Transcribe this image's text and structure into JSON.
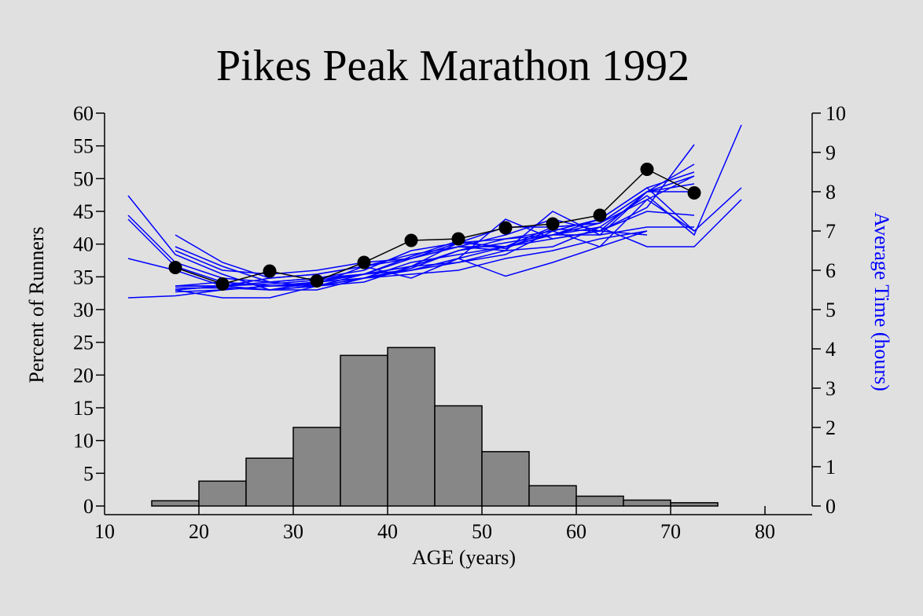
{
  "chart_data": {
    "type": "bar",
    "title": "Pikes Peak Marathon 1992",
    "xlabel": "AGE (years)",
    "ylabel": "Percent of Runners",
    "y2label": "Average Time (hours)",
    "xlim": [
      10,
      85
    ],
    "ylim": [
      0,
      60
    ],
    "y2lim": [
      0,
      10
    ],
    "xticks": [
      "10",
      "20",
      "30",
      "40",
      "50",
      "60",
      "70",
      "80"
    ],
    "yticks": [
      "0",
      "5",
      "10",
      "15",
      "20",
      "25",
      "30",
      "35",
      "40",
      "45",
      "50",
      "55",
      "60"
    ],
    "y2ticks": [
      "0",
      "1",
      "2",
      "3",
      "4",
      "5",
      "6",
      "7",
      "8",
      "9",
      "10"
    ],
    "grid": false,
    "histogram": {
      "bin_edges": [
        15,
        20,
        25,
        30,
        35,
        40,
        45,
        50,
        55,
        60,
        65,
        70,
        75
      ],
      "values": [
        0.8,
        3.8,
        7.3,
        12.0,
        23.0,
        24.2,
        15.3,
        8.3,
        3.1,
        1.5,
        0.9,
        0.5
      ],
      "color": "#878787"
    },
    "average_1992": {
      "axis": "right",
      "color": "#000000",
      "x": [
        17.5,
        22.5,
        27.5,
        32.5,
        37.5,
        42.5,
        47.5,
        52.5,
        57.5,
        62.5,
        67.5,
        72.5
      ],
      "y": [
        6.07,
        5.65,
        5.98,
        5.73,
        6.2,
        6.76,
        6.8,
        7.08,
        7.18,
        7.4,
        8.57,
        7.97
      ]
    },
    "other_years": {
      "axis": "right",
      "color": "#0000ff",
      "x": [
        12.5,
        17.5,
        22.5,
        27.5,
        32.5,
        37.5,
        42.5,
        47.5,
        52.5,
        57.5,
        62.5,
        67.5,
        72.5,
        77.5
      ],
      "series": [
        {
          "y": [
            7.9,
            6.4,
            5.9,
            5.5,
            5.6,
            5.8,
            6.2,
            6.4,
            6.6,
            6.9,
            7.2,
            7.8,
            8.4,
            null
          ]
        },
        {
          "y": [
            7.3,
            6.1,
            5.7,
            5.6,
            5.7,
            5.9,
            6.0,
            6.3,
            6.6,
            6.8,
            7.0,
            7.6,
            9.2,
            null
          ]
        },
        {
          "y": [
            7.4,
            6.2,
            5.8,
            5.7,
            5.6,
            5.7,
            6.1,
            6.2,
            6.4,
            7.0,
            7.3,
            8.1,
            7.0,
            8.1
          ]
        },
        {
          "y": [
            6.3,
            6.0,
            5.6,
            5.5,
            5.7,
            5.8,
            6.0,
            6.2,
            6.5,
            6.6,
            7.1,
            7.9,
            6.9,
            9.7
          ]
        },
        {
          "y": [
            5.3,
            5.35,
            5.5,
            5.6,
            5.6,
            5.9,
            6.1,
            6.5,
            6.8,
            6.9,
            7.1,
            6.6,
            6.6,
            7.8
          ]
        },
        {
          "y": [
            null,
            5.5,
            5.6,
            5.7,
            5.8,
            5.9,
            6.3,
            6.6,
            6.6,
            6.9,
            7.3,
            8.1,
            8.5,
            null
          ]
        },
        {
          "y": [
            null,
            5.6,
            5.6,
            5.5,
            5.5,
            5.8,
            6.0,
            6.3,
            7.3,
            6.8,
            7.0,
            8.0,
            8.2,
            null
          ]
        },
        {
          "y": [
            null,
            5.5,
            5.6,
            5.8,
            5.9,
            6.1,
            6.3,
            6.6,
            6.5,
            7.5,
            6.9,
            8.0,
            8.4,
            null
          ]
        },
        {
          "y": [
            null,
            5.6,
            5.7,
            5.6,
            5.7,
            5.9,
            6.1,
            6.7,
            6.6,
            7.1,
            7.2,
            8.0,
            8.0,
            null
          ]
        },
        {
          "y": [
            null,
            6.6,
            6.1,
            5.7,
            5.8,
            6.0,
            6.5,
            6.7,
            7.1,
            7.1,
            7.2,
            8.0,
            8.7,
            null
          ]
        },
        {
          "y": [
            null,
            6.9,
            6.2,
            5.8,
            5.9,
            6.1,
            6.4,
            6.6,
            6.9,
            7.3,
            7.0,
            6.9,
            null,
            null
          ]
        },
        {
          "y": [
            null,
            6.5,
            6.0,
            5.9,
            6.0,
            6.2,
            6.3,
            6.7,
            6.8,
            7.0,
            6.6,
            7.0,
            null,
            null
          ]
        },
        {
          "y": [
            null,
            5.5,
            5.3,
            5.3,
            5.6,
            5.8,
            5.9,
            6.0,
            6.3,
            6.5,
            6.8,
            7.0,
            null,
            null
          ]
        },
        {
          "y": [
            null,
            5.55,
            5.55,
            5.5,
            5.6,
            5.8,
            6.05,
            6.5,
            6.7,
            6.9,
            6.9,
            7.1,
            7.1,
            null
          ]
        },
        {
          "y": [
            null,
            5.45,
            5.5,
            5.6,
            5.65,
            6.1,
            5.8,
            6.3,
            5.85,
            6.2,
            6.6,
            7.8,
            7.0,
            null
          ]
        },
        {
          "y": [
            null,
            5.6,
            5.6,
            5.65,
            5.75,
            5.9,
            6.35,
            6.75,
            6.55,
            7.05,
            7.0,
            7.5,
            7.4,
            null
          ]
        }
      ]
    }
  }
}
